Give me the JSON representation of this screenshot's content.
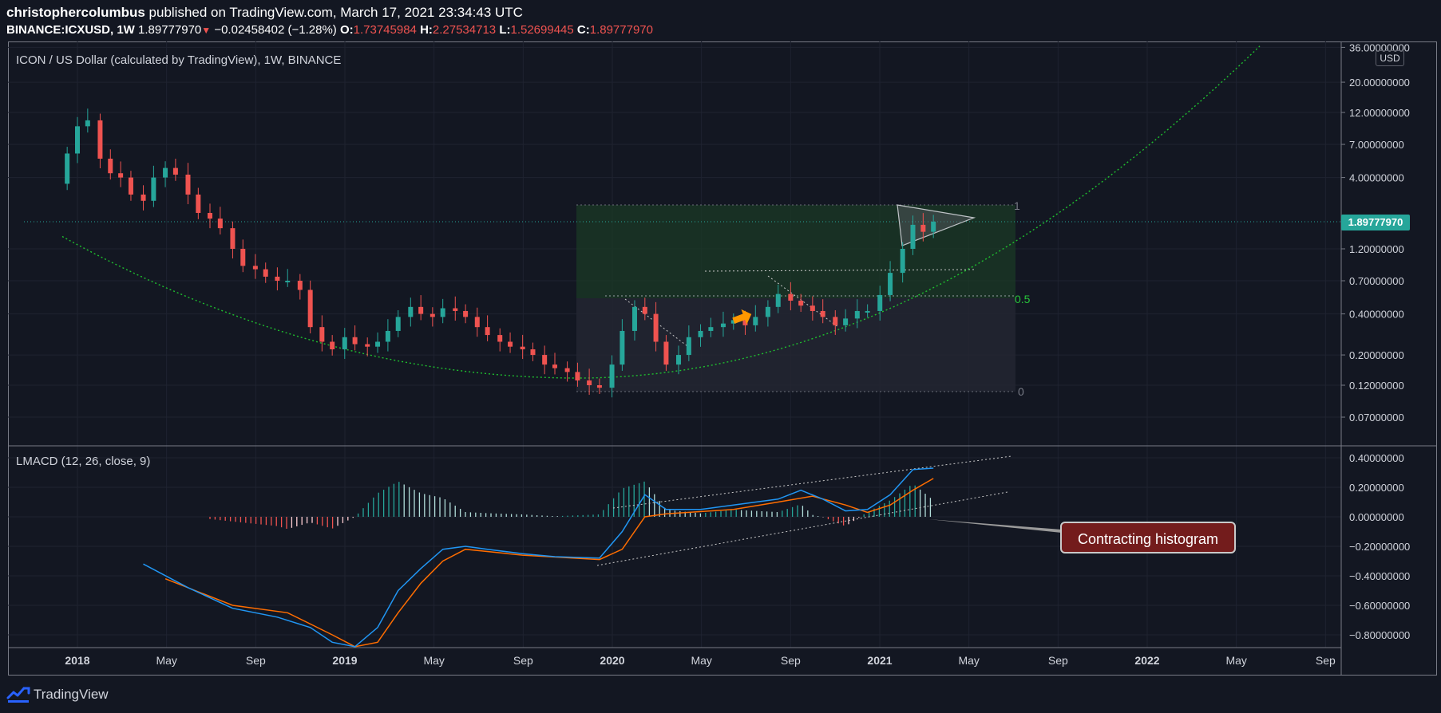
{
  "header": {
    "author": "christophercolumbus",
    "published": " published on TradingView.com, March 17, 2021 23:34:43 UTC",
    "symbol": "BINANCE:ICXUSD, 1W",
    "last": "1.89777970",
    "change": "−0.02458402 (−1.28%)",
    "o_label": "O:",
    "o_value": "1.73745984",
    "h_label": "H:",
    "h_value": "2.27534713",
    "l_label": "L:",
    "l_value": "1.52699445",
    "c_label": "C:",
    "c_value": "1.89777970"
  },
  "price_pane": {
    "title": "ICON / US Dollar (calculated by TradingView), 1W, BINANCE",
    "currency": "USD",
    "last_price_tag": "1.89777970"
  },
  "indicator_pane": {
    "title": "LMACD (12, 26, close, 9)"
  },
  "annotation": {
    "text": "Contracting histogram"
  },
  "footer": {
    "brand": "TradingView"
  },
  "colors": {
    "background": "#131722",
    "up": "#26a69a",
    "down": "#ef5350",
    "macd": "#2196f3",
    "signal": "#ff6d00",
    "curve": "#1fbf2f",
    "callout": "#731c1c"
  },
  "chart_data": {
    "type": "candlestick",
    "price_axis": {
      "scale": "log",
      "ticks": [
        "36.00000000",
        "20.00000000",
        "12.00000000",
        "7.00000000",
        "4.00000000",
        "1.20000000",
        "0.70000000",
        "0.40000000",
        "0.20000000",
        "0.12000000",
        "0.07000000"
      ]
    },
    "x_axis": {
      "ticks": [
        "2018",
        "May",
        "Sep",
        "2019",
        "May",
        "Sep",
        "2020",
        "May",
        "Sep",
        "2021",
        "May",
        "Sep",
        "2022",
        "May",
        "Sep"
      ]
    },
    "indicator_axis": {
      "ticks": [
        "0.40000000",
        "0.20000000",
        "0.00000000",
        "−0.20000000",
        "−0.40000000",
        "−0.60000000",
        "−0.80000000"
      ]
    },
    "fib_levels": [
      "1",
      "0.5",
      "0"
    ],
    "close_series": [
      [
        "2017-12-18",
        6.0
      ],
      [
        "2018-01-01",
        9.5
      ],
      [
        "2018-01-15",
        10.5
      ],
      [
        "2018-02-01",
        5.5
      ],
      [
        "2018-02-15",
        4.3
      ],
      [
        "2018-03-01",
        4.0
      ],
      [
        "2018-03-15",
        3.0
      ],
      [
        "2018-04-01",
        2.7
      ],
      [
        "2018-04-15",
        4.0
      ],
      [
        "2018-05-01",
        4.7
      ],
      [
        "2018-05-15",
        4.2
      ],
      [
        "2018-06-01",
        3.0
      ],
      [
        "2018-06-15",
        2.2
      ],
      [
        "2018-07-01",
        2.0
      ],
      [
        "2018-07-15",
        1.7
      ],
      [
        "2018-08-01",
        1.2
      ],
      [
        "2018-08-15",
        0.9
      ],
      [
        "2018-09-01",
        0.85
      ],
      [
        "2018-09-15",
        0.75
      ],
      [
        "2018-10-01",
        0.7
      ],
      [
        "2018-10-15",
        0.7
      ],
      [
        "2018-11-01",
        0.6
      ],
      [
        "2018-11-15",
        0.32
      ],
      [
        "2018-12-01",
        0.25
      ],
      [
        "2018-12-15",
        0.22
      ],
      [
        "2019-01-01",
        0.27
      ],
      [
        "2019-01-15",
        0.24
      ],
      [
        "2019-02-01",
        0.23
      ],
      [
        "2019-02-15",
        0.25
      ],
      [
        "2019-03-01",
        0.3
      ],
      [
        "2019-03-15",
        0.38
      ],
      [
        "2019-04-01",
        0.45
      ],
      [
        "2019-04-15",
        0.4
      ],
      [
        "2019-05-01",
        0.38
      ],
      [
        "2019-05-15",
        0.44
      ],
      [
        "2019-06-01",
        0.42
      ],
      [
        "2019-06-15",
        0.38
      ],
      [
        "2019-07-01",
        0.32
      ],
      [
        "2019-07-15",
        0.28
      ],
      [
        "2019-08-01",
        0.25
      ],
      [
        "2019-08-15",
        0.23
      ],
      [
        "2019-09-01",
        0.22
      ],
      [
        "2019-09-15",
        0.2
      ],
      [
        "2019-10-01",
        0.17
      ],
      [
        "2019-10-15",
        0.16
      ],
      [
        "2019-11-01",
        0.15
      ],
      [
        "2019-11-15",
        0.13
      ],
      [
        "2019-12-01",
        0.12
      ],
      [
        "2019-12-15",
        0.115
      ],
      [
        "2020-01-01",
        0.17
      ],
      [
        "2020-01-15",
        0.3
      ],
      [
        "2020-02-01",
        0.45
      ],
      [
        "2020-02-15",
        0.4
      ],
      [
        "2020-03-01",
        0.25
      ],
      [
        "2020-03-15",
        0.17
      ],
      [
        "2020-04-01",
        0.2
      ],
      [
        "2020-04-15",
        0.27
      ],
      [
        "2020-05-01",
        0.3
      ],
      [
        "2020-05-15",
        0.32
      ],
      [
        "2020-06-01",
        0.34
      ],
      [
        "2020-06-15",
        0.36
      ],
      [
        "2020-07-01",
        0.33
      ],
      [
        "2020-07-15",
        0.38
      ],
      [
        "2020-08-01",
        0.45
      ],
      [
        "2020-08-15",
        0.56
      ],
      [
        "2020-09-01",
        0.5
      ],
      [
        "2020-09-15",
        0.46
      ],
      [
        "2020-10-01",
        0.42
      ],
      [
        "2020-10-15",
        0.38
      ],
      [
        "2020-11-01",
        0.33
      ],
      [
        "2020-11-15",
        0.37
      ],
      [
        "2020-12-01",
        0.42
      ],
      [
        "2020-12-15",
        0.42
      ],
      [
        "2021-01-01",
        0.55
      ],
      [
        "2021-01-15",
        0.8
      ],
      [
        "2021-02-01",
        1.2
      ],
      [
        "2021-02-15",
        1.8
      ],
      [
        "2021-03-01",
        1.6
      ],
      [
        "2021-03-15",
        1.9
      ]
    ],
    "lmacd_series": [
      [
        "2018-04-01",
        -0.32
      ],
      [
        "2018-06-01",
        -0.48
      ],
      [
        "2018-08-01",
        -0.62
      ],
      [
        "2018-10-01",
        -0.68
      ],
      [
        "2018-11-15",
        -0.75
      ],
      [
        "2018-12-15",
        -0.85
      ],
      [
        "2019-01-15",
        -0.88
      ],
      [
        "2019-02-15",
        -0.75
      ],
      [
        "2019-03-15",
        -0.5
      ],
      [
        "2019-04-15",
        -0.35
      ],
      [
        "2019-05-15",
        -0.22
      ],
      [
        "2019-06-15",
        -0.2
      ],
      [
        "2019-07-15",
        -0.22
      ],
      [
        "2019-09-01",
        -0.25
      ],
      [
        "2019-10-15",
        -0.27
      ],
      [
        "2019-12-15",
        -0.28
      ],
      [
        "2020-01-15",
        -0.1
      ],
      [
        "2020-02-15",
        0.15
      ],
      [
        "2020-03-15",
        0.05
      ],
      [
        "2020-05-01",
        0.05
      ],
      [
        "2020-06-15",
        0.08
      ],
      [
        "2020-08-15",
        0.12
      ],
      [
        "2020-09-15",
        0.18
      ],
      [
        "2020-10-15",
        0.12
      ],
      [
        "2020-11-15",
        0.04
      ],
      [
        "2020-12-15",
        0.05
      ],
      [
        "2021-01-15",
        0.15
      ],
      [
        "2021-02-15",
        0.32
      ],
      [
        "2021-03-15",
        0.33
      ]
    ],
    "signal_series": [
      [
        "2018-05-01",
        -0.42
      ],
      [
        "2018-08-01",
        -0.6
      ],
      [
        "2018-10-15",
        -0.65
      ],
      [
        "2018-12-15",
        -0.8
      ],
      [
        "2019-01-15",
        -0.88
      ],
      [
        "2019-02-15",
        -0.85
      ],
      [
        "2019-03-15",
        -0.65
      ],
      [
        "2019-04-15",
        -0.45
      ],
      [
        "2019-05-15",
        -0.3
      ],
      [
        "2019-06-15",
        -0.22
      ],
      [
        "2019-09-01",
        -0.26
      ],
      [
        "2019-12-15",
        -0.29
      ],
      [
        "2020-01-15",
        -0.22
      ],
      [
        "2020-02-15",
        0.0
      ],
      [
        "2020-03-15",
        0.02
      ],
      [
        "2020-06-15",
        0.05
      ],
      [
        "2020-08-15",
        0.1
      ],
      [
        "2020-10-01",
        0.14
      ],
      [
        "2020-11-15",
        0.08
      ],
      [
        "2020-12-15",
        0.03
      ],
      [
        "2021-01-15",
        0.08
      ],
      [
        "2021-02-15",
        0.18
      ],
      [
        "2021-03-15",
        0.26
      ]
    ]
  }
}
